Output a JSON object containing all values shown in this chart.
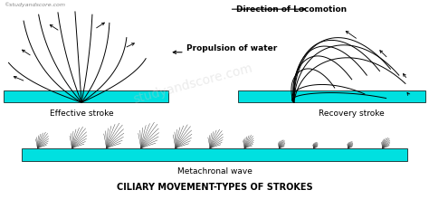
{
  "bg_color": "#ffffff",
  "cyan_color": "#00e0e0",
  "line_color": "#000000",
  "title": "CILIARY MOVEMENT-TYPES OF STROKES",
  "title_fontsize": 7.0,
  "label_effective": "Effective stroke",
  "label_recovery": "Recovery stroke",
  "label_locomotion": "Direction of Locomotion",
  "label_propulsion": "Propulsion of water",
  "label_metachronal": "Metachronal wave",
  "label_website": "©studyandscore.com",
  "label_fontsize": 6.5,
  "small_fontsize": 4.5,
  "watermark": "studyandscore.com"
}
